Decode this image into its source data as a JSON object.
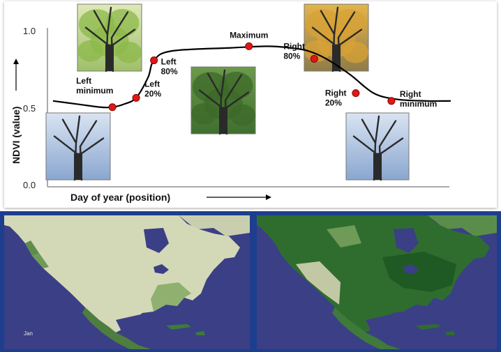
{
  "chart_data": {
    "type": "line",
    "title": "",
    "xlabel": "Day of year (position)",
    "ylabel": "NDVI (value)",
    "ylim": [
      0.0,
      1.0
    ],
    "y_ticks": [
      "0.0",
      "0.5",
      "1.0"
    ],
    "curve": {
      "x": [
        0,
        4,
        8,
        10,
        12,
        14,
        16,
        17,
        20,
        30,
        36,
        40,
        43,
        46,
        50,
        54,
        58,
        63,
        67
      ],
      "y": [
        0.55,
        0.53,
        0.51,
        0.51,
        0.53,
        0.57,
        0.7,
        0.81,
        0.87,
        0.89,
        0.9,
        0.89,
        0.87,
        0.82,
        0.72,
        0.6,
        0.56,
        0.55,
        0.55
      ]
    },
    "points": [
      {
        "label_lines": [
          "Left",
          "minimum"
        ],
        "x": 10,
        "y": 0.51
      },
      {
        "label_lines": [
          "Left",
          "20%"
        ],
        "x": 14,
        "y": 0.57
      },
      {
        "label_lines": [
          "Left",
          "80%"
        ],
        "x": 17,
        "y": 0.81
      },
      {
        "label_lines": [
          "Maximum"
        ],
        "x": 33,
        "y": 0.9
      },
      {
        "label_lines": [
          "Right",
          "80%"
        ],
        "x": 44,
        "y": 0.82
      },
      {
        "label_lines": [
          "Right",
          "20%"
        ],
        "x": 51,
        "y": 0.6
      },
      {
        "label_lines": [
          "Right",
          "minimum"
        ],
        "x": 57,
        "y": 0.55
      }
    ],
    "colors": {
      "line": "#000000",
      "point": "#e01818",
      "point_stroke": "#8a0000"
    },
    "tree_photos": [
      {
        "name": "tree-photo-leafless-left",
        "season": "winter"
      },
      {
        "name": "tree-photo-spring",
        "season": "spring"
      },
      {
        "name": "tree-photo-summer",
        "season": "summer"
      },
      {
        "name": "tree-photo-autumn",
        "season": "autumn"
      },
      {
        "name": "tree-photo-leafless-right",
        "season": "winter"
      }
    ]
  },
  "maps": {
    "left_label": "Jan",
    "colors": {
      "ocean": "#3b3f86",
      "land_light": "#d3d9b7",
      "land_green": "#6f9a58",
      "land_dark": "#1f5a24",
      "land_mid": "#3f7a3a"
    }
  }
}
